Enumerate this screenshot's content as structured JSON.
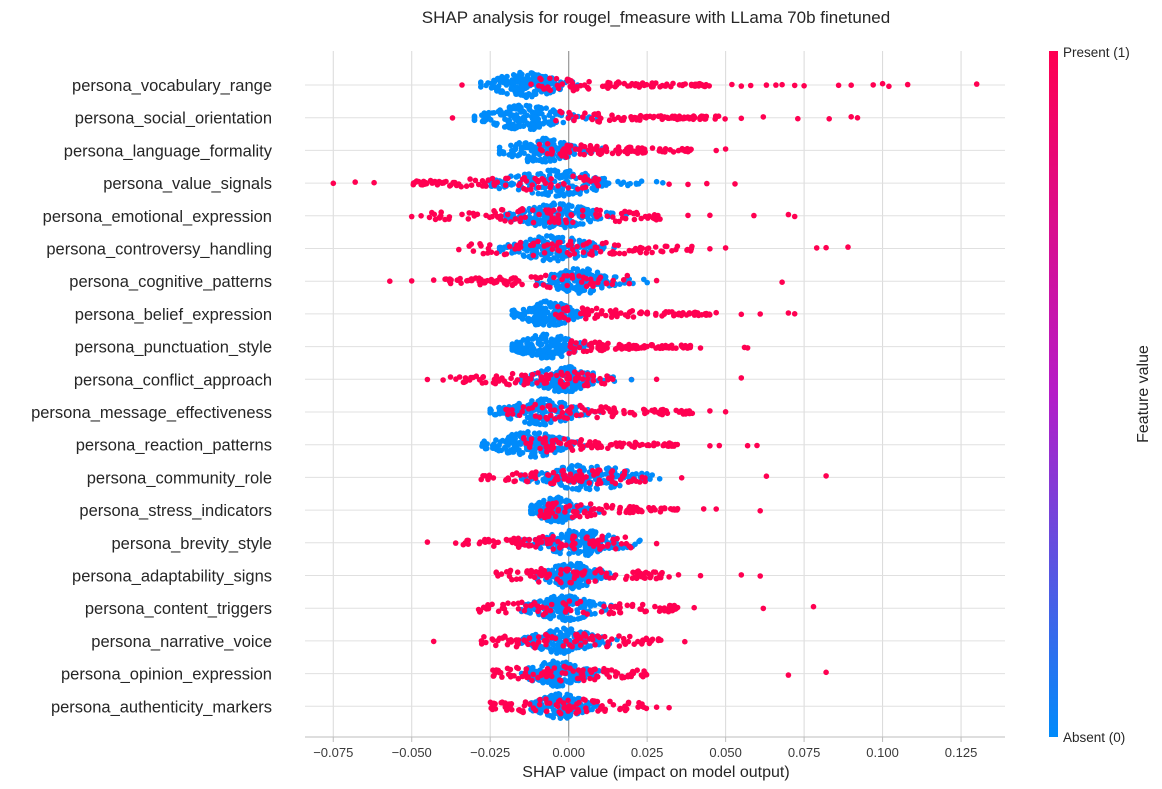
{
  "chart_data": {
    "type": "scatter",
    "subtype": "shap-beeswarm",
    "title": "SHAP analysis for rougel_fmeasure with LLama 70b finetuned",
    "xlabel": "SHAP value (impact on model output)",
    "ylabel": "",
    "xlim": [
      -0.084,
      0.139
    ],
    "x_ticks": [
      -0.075,
      -0.05,
      -0.025,
      0.0,
      0.025,
      0.05,
      0.075,
      0.1,
      0.125
    ],
    "x_tick_labels": [
      "−0.075",
      "−0.050",
      "−0.025",
      "0.000",
      "0.025",
      "0.050",
      "0.075",
      "0.100",
      "0.125"
    ],
    "grid": true,
    "colorbar": {
      "title": "Feature value",
      "high_label": "Present (1)",
      "low_label": "Absent (0)",
      "high_color": "#ff0051",
      "mid_color": "#b51cc8",
      "low_color": "#008bfb"
    },
    "features": [
      {
        "name": "persona_vocabulary_range",
        "absent_range": [
          -0.028,
          0.008
        ],
        "present_range": [
          -0.01,
          0.045
        ],
        "present_outliers": [
          -0.034,
          -0.012,
          0.052,
          0.055,
          0.058,
          0.063,
          0.066,
          0.068,
          0.072,
          0.075,
          0.086,
          0.09,
          0.097,
          0.1,
          0.102,
          0.108,
          0.13
        ]
      },
      {
        "name": "persona_social_orientation",
        "absent_range": [
          -0.03,
          0.01
        ],
        "present_range": [
          -0.005,
          0.05
        ],
        "present_outliers": [
          -0.037,
          0.055,
          0.062,
          0.073,
          0.083,
          0.09,
          0.092
        ]
      },
      {
        "name": "persona_language_formality",
        "absent_range": [
          -0.022,
          0.012
        ],
        "present_range": [
          -0.01,
          0.04
        ],
        "present_outliers": [
          0.035,
          0.038,
          0.047,
          0.05
        ]
      },
      {
        "name": "persona_value_signals",
        "absent_range": [
          -0.03,
          0.03
        ],
        "present_range": [
          -0.05,
          0.01
        ],
        "present_outliers": [
          -0.075,
          -0.068,
          -0.062,
          -0.046,
          -0.042,
          -0.035,
          0.032,
          0.038,
          0.044,
          0.053
        ],
        "absent_outliers": [
          0.028,
          0.03
        ]
      },
      {
        "name": "persona_emotional_expression",
        "absent_range": [
          -0.02,
          0.02
        ],
        "present_range": [
          -0.045,
          0.03
        ],
        "present_outliers": [
          -0.05,
          -0.047,
          -0.038,
          -0.034,
          0.038,
          0.045,
          0.059,
          0.07,
          0.072
        ]
      },
      {
        "name": "persona_controversy_handling",
        "absent_range": [
          -0.022,
          0.02
        ],
        "present_range": [
          -0.032,
          0.04
        ],
        "present_outliers": [
          -0.035,
          0.045,
          0.05,
          0.079,
          0.082,
          0.089
        ]
      },
      {
        "name": "persona_cognitive_patterns",
        "absent_range": [
          -0.01,
          0.025
        ],
        "present_range": [
          -0.04,
          0.02
        ],
        "present_outliers": [
          -0.057,
          -0.05,
          -0.043,
          -0.038,
          0.028,
          0.068
        ],
        "absent_outliers": [
          0.025
        ]
      },
      {
        "name": "persona_belief_expression",
        "absent_range": [
          -0.018,
          0.012
        ],
        "present_range": [
          -0.005,
          0.045
        ],
        "present_outliers": [
          0.04,
          0.047,
          0.055,
          0.061,
          0.07,
          0.072
        ]
      },
      {
        "name": "persona_punctuation_style",
        "absent_range": [
          -0.018,
          0.012
        ],
        "present_range": [
          0.0,
          0.04
        ],
        "present_outliers": [
          0.042,
          0.056,
          0.057
        ]
      },
      {
        "name": "persona_conflict_approach",
        "absent_range": [
          -0.015,
          0.02
        ],
        "present_range": [
          -0.04,
          0.015
        ],
        "present_outliers": [
          -0.045,
          -0.04,
          0.02,
          0.028,
          0.055
        ],
        "absent_outliers": [
          0.02
        ]
      },
      {
        "name": "persona_message_effectiveness",
        "absent_range": [
          -0.025,
          0.015
        ],
        "present_range": [
          -0.02,
          0.04
        ],
        "present_outliers": [
          0.045,
          0.05
        ]
      },
      {
        "name": "persona_reaction_patterns",
        "absent_range": [
          -0.028,
          0.012
        ],
        "present_range": [
          -0.015,
          0.035
        ],
        "present_outliers": [
          0.045,
          0.048,
          0.057,
          0.06
        ],
        "absent_outliers": [
          -0.026
        ]
      },
      {
        "name": "persona_community_role",
        "absent_range": [
          -0.015,
          0.035
        ],
        "present_range": [
          -0.028,
          0.025
        ],
        "present_outliers": [
          0.036,
          0.063,
          0.082
        ]
      },
      {
        "name": "persona_stress_indicators",
        "absent_range": [
          -0.012,
          0.012
        ],
        "present_range": [
          -0.01,
          0.035
        ],
        "present_outliers": [
          0.043,
          0.047,
          0.061
        ]
      },
      {
        "name": "persona_brevity_style",
        "absent_range": [
          -0.015,
          0.03
        ],
        "present_range": [
          -0.035,
          0.02
        ],
        "present_outliers": [
          -0.045,
          -0.036,
          -0.032,
          0.028
        ]
      },
      {
        "name": "persona_adaptability_signs",
        "absent_range": [
          -0.01,
          0.02
        ],
        "present_range": [
          -0.025,
          0.03
        ],
        "present_outliers": [
          0.032,
          0.035,
          0.042,
          0.055,
          0.061
        ]
      },
      {
        "name": "persona_content_triggers",
        "absent_range": [
          -0.015,
          0.02
        ],
        "present_range": [
          -0.03,
          0.035
        ],
        "present_outliers": [
          0.04,
          0.062,
          0.078
        ]
      },
      {
        "name": "persona_narrative_voice",
        "absent_range": [
          -0.015,
          0.02
        ],
        "present_range": [
          -0.028,
          0.03
        ],
        "present_outliers": [
          -0.043,
          0.037
        ]
      },
      {
        "name": "persona_opinion_expression",
        "absent_range": [
          -0.015,
          0.015
        ],
        "present_range": [
          -0.025,
          0.025
        ],
        "present_outliers": [
          0.07,
          0.082
        ]
      },
      {
        "name": "persona_authenticity_markers",
        "absent_range": [
          -0.012,
          0.015
        ],
        "present_range": [
          -0.025,
          0.025
        ],
        "present_outliers": [
          0.028,
          0.032
        ]
      }
    ]
  }
}
